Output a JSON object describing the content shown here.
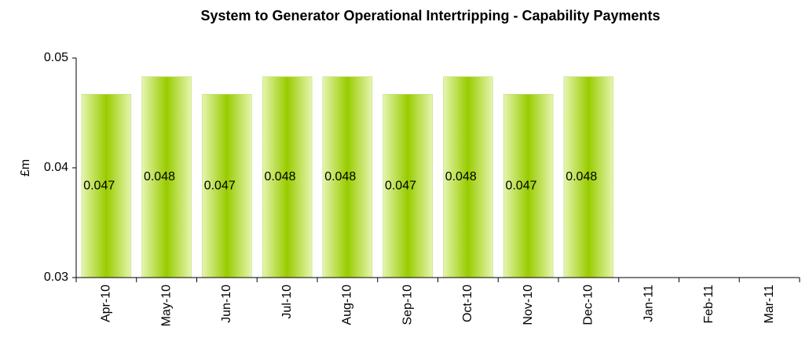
{
  "chart_data": {
    "type": "bar",
    "title": "System to Generator Operational Intertripping - Capability Payments",
    "y_label": "£m",
    "categories": [
      "Apr-10",
      "May-10",
      "Jun-10",
      "Jul-10",
      "Aug-10",
      "Sep-10",
      "Oct-10",
      "Nov-10",
      "Dec-10",
      "Jan-11",
      "Feb-11",
      "Mar-11"
    ],
    "values": [
      0.0467,
      0.0483,
      0.0467,
      0.0483,
      0.0483,
      0.0467,
      0.0483,
      0.0467,
      0.0483,
      null,
      null,
      null
    ],
    "value_labels": [
      "0.047",
      "0.048",
      "0.047",
      "0.048",
      "0.048",
      "0.047",
      "0.048",
      "0.047",
      "0.048",
      null,
      null,
      null
    ],
    "color": "#99cc00",
    "ylim": [
      0.03,
      0.05
    ],
    "yticks": [
      0.03,
      0.04,
      0.05
    ],
    "grid": false
  }
}
